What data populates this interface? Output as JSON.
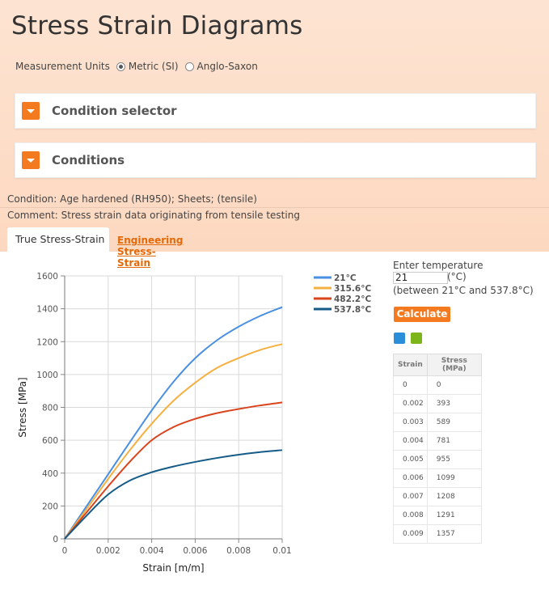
{
  "page": {
    "title": "Stress Strain Diagrams",
    "units_label": "Measurement Units",
    "units_options": [
      "Metric (SI)",
      "Anglo-Saxon"
    ],
    "units_selected": "Metric (SI)"
  },
  "panels": {
    "condition_selector": "Condition selector",
    "conditions": "Conditions"
  },
  "info": {
    "condition": "Condition: Age hardened (RH950); Sheets; (tensile)",
    "comment": "Comment: Stress strain data originating from tensile testing"
  },
  "tabs": {
    "true": "True Stress-Strain",
    "engineering": "Engineering Stress-Strain"
  },
  "side": {
    "enter_label": "Enter temperature",
    "temp_value": "21",
    "temp_unit": "(°C)",
    "range": "(between 21°C and 537.8°C)",
    "calc_button": "Calculate",
    "icons": [
      "export-icon",
      "swap-icon"
    ]
  },
  "table": {
    "headers": [
      "Strain",
      "Stress (MPa)"
    ],
    "rows": [
      [
        "0",
        "0"
      ],
      [
        "0.002",
        "393"
      ],
      [
        "0.003",
        "589"
      ],
      [
        "0.004",
        "781"
      ],
      [
        "0.005",
        "955"
      ],
      [
        "0.006",
        "1099"
      ],
      [
        "0.007",
        "1208"
      ],
      [
        "0.008",
        "1291"
      ],
      [
        "0.009",
        "1357"
      ]
    ]
  },
  "chart_data": {
    "type": "line",
    "xlabel": "Strain [m/m]",
    "ylabel": "Stress [MPa]",
    "xlim": [
      0,
      0.01
    ],
    "ylim": [
      0,
      1600
    ],
    "xticks": [
      "0",
      "0.002",
      "0.004",
      "0.006",
      "0.008",
      "0.01"
    ],
    "yticks": [
      "0",
      "200",
      "400",
      "600",
      "800",
      "1000",
      "1200",
      "1400",
      "1600"
    ],
    "grid": true,
    "legend": "top-right",
    "x": [
      0,
      0.001,
      0.002,
      0.003,
      0.004,
      0.005,
      0.006,
      0.007,
      0.008,
      0.009,
      0.01
    ],
    "series": [
      {
        "name": "21°C",
        "color": "#4a90e2",
        "values": [
          0,
          197,
          393,
          589,
          781,
          955,
          1099,
          1208,
          1291,
          1357,
          1410
        ]
      },
      {
        "name": "315.6°C",
        "color": "#f5b042",
        "values": [
          0,
          180,
          365,
          540,
          700,
          840,
          950,
          1040,
          1100,
          1150,
          1185
        ]
      },
      {
        "name": "482.2°C",
        "color": "#d9441c",
        "values": [
          0,
          160,
          320,
          470,
          600,
          680,
          730,
          765,
          790,
          812,
          830
        ]
      },
      {
        "name": "537.8°C",
        "color": "#155b87",
        "values": [
          0,
          140,
          270,
          355,
          405,
          440,
          468,
          492,
          512,
          528,
          540
        ]
      }
    ]
  }
}
